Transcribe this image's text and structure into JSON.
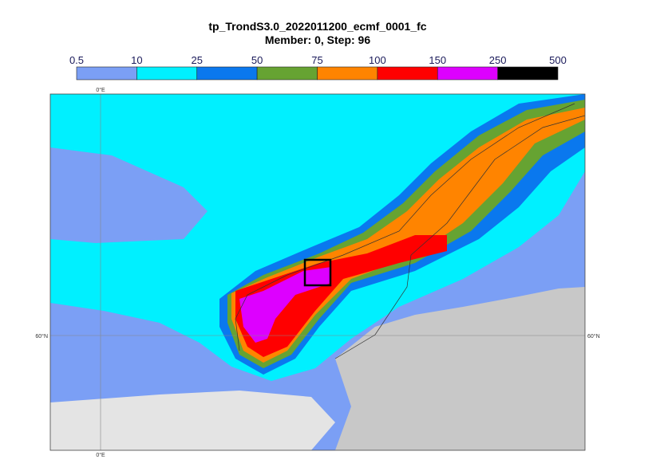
{
  "title": "tp_TrondS3.0_2022011200_ecmf_0001_fc",
  "subtitle": "Member: 0, Step: 96",
  "colorbar": {
    "levels": [
      0.5,
      10,
      25,
      50,
      75,
      100,
      150,
      250,
      500
    ],
    "colors": [
      "#7b9ff5",
      "#00f0ff",
      "#0a78ee",
      "#66a332",
      "#ff8400",
      "#ff0000",
      "#dd00ff",
      "#000000"
    ]
  },
  "graticule": {
    "meridian_label": "0°E",
    "parallel_label": "60°N"
  }
}
